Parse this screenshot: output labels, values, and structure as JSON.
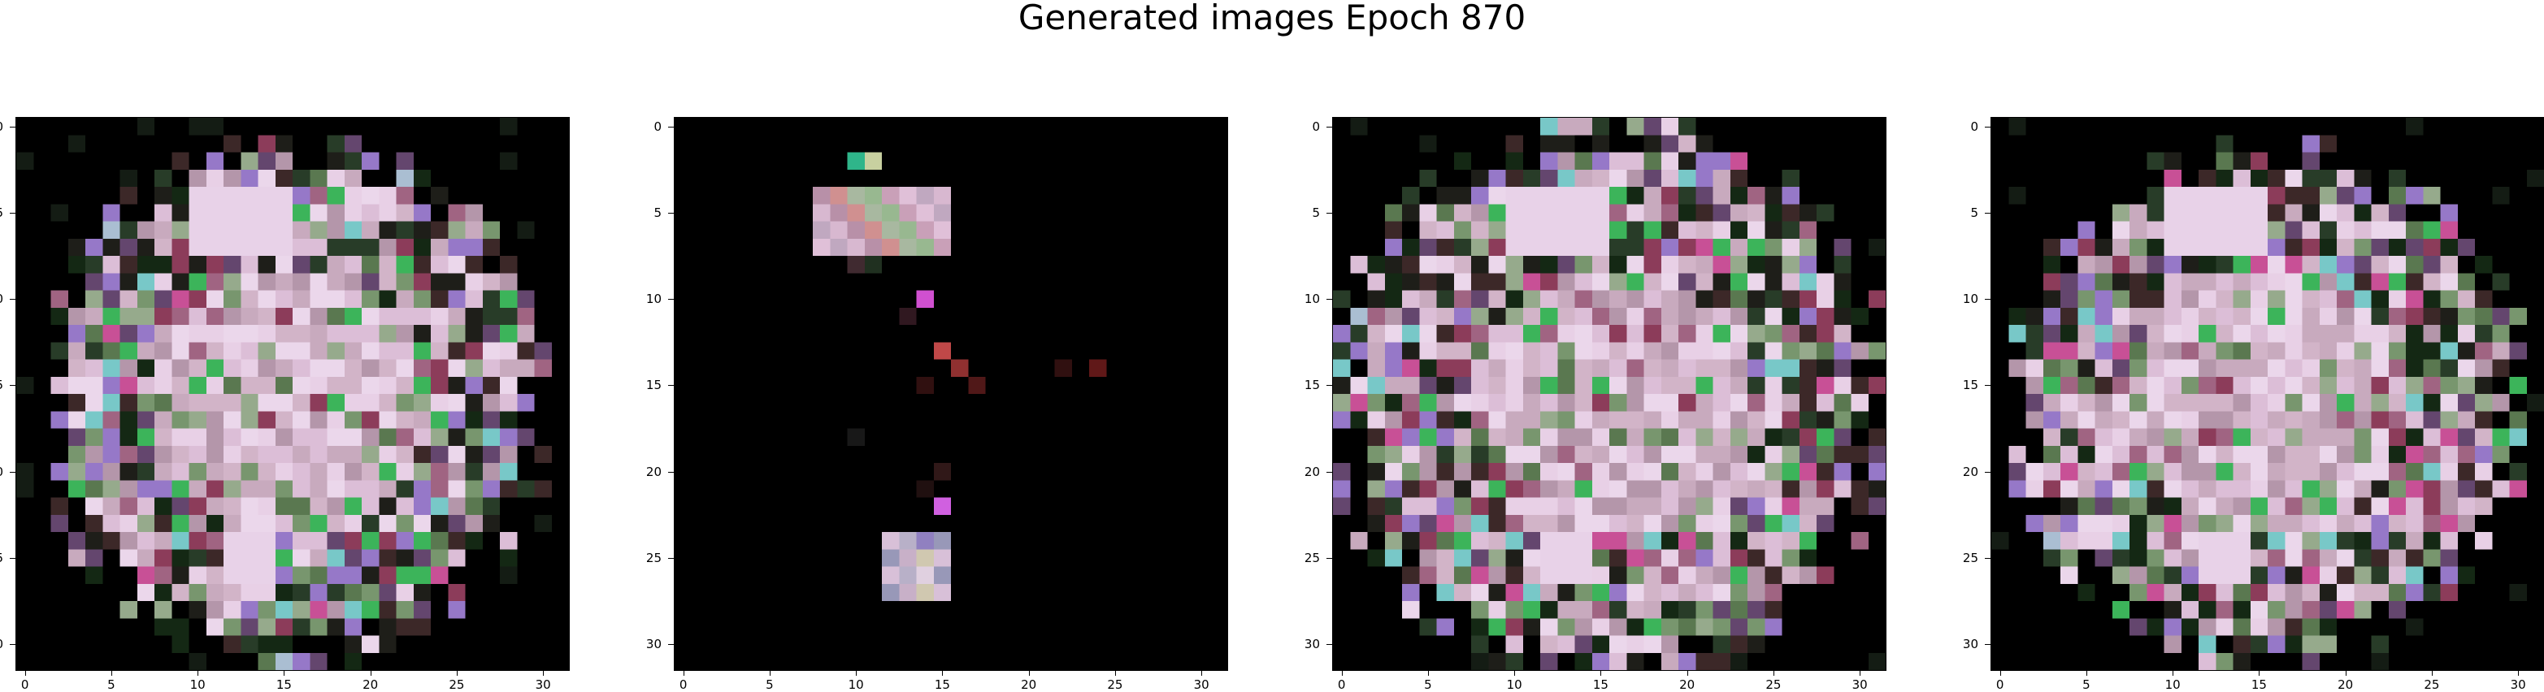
{
  "title": "Generated images Epoch 870",
  "x_tick_labels": [
    "0",
    "5",
    "10",
    "15",
    "20",
    "25",
    "30"
  ],
  "y_tick_labels": [
    "0",
    "5",
    "10",
    "15",
    "20",
    "25",
    "30"
  ],
  "image_grid_size": 32,
  "panels": [
    {
      "name": "generated-image-1",
      "subject": "pixelated flower-like blob, pink and green on black, wide spread"
    },
    {
      "name": "generated-image-2",
      "subject": "sparse pixels on black: small pink/green cluster near top, small red and pink specks, small pink cluster near bottom"
    },
    {
      "name": "generated-image-3",
      "subject": "dense pixelated pinkish-white blob with green speckles on black"
    },
    {
      "name": "generated-image-4",
      "subject": "pixelated flower-like blob, pink and green on black, similar to first"
    }
  ],
  "colors": {
    "background": "#000000",
    "pink_light": "#e8d0e6",
    "green_bright": "#3ab55a",
    "magenta": "#d060e0",
    "red": "#c0404a"
  }
}
